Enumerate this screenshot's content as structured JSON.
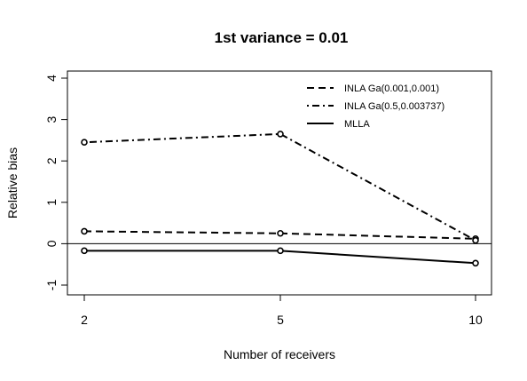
{
  "chart_data": {
    "type": "line",
    "title": "1st variance = 0.01",
    "xlabel": "Number of receivers",
    "ylabel": "Relative bias",
    "x": [
      "2",
      "5",
      "10"
    ],
    "xticks": [
      "2",
      "5",
      "10"
    ],
    "yticks": [
      "-1",
      "0",
      "1",
      "2",
      "3",
      "4"
    ],
    "ylim": [
      -1.2,
      4.2
    ],
    "reference_line_y": 0,
    "legend_position": "top-right",
    "grid": false,
    "series": [
      {
        "name": "INLA Ga(0.001,0.001)",
        "line_style": "dashed",
        "values": [
          0.3,
          0.25,
          0.12
        ]
      },
      {
        "name": "INLA Ga(0.5,0.003737)",
        "line_style": "dotdash",
        "values": [
          2.45,
          2.65,
          0.08
        ]
      },
      {
        "name": "MLLA",
        "line_style": "solid",
        "values": [
          -0.17,
          -0.17,
          -0.47
        ]
      }
    ]
  }
}
